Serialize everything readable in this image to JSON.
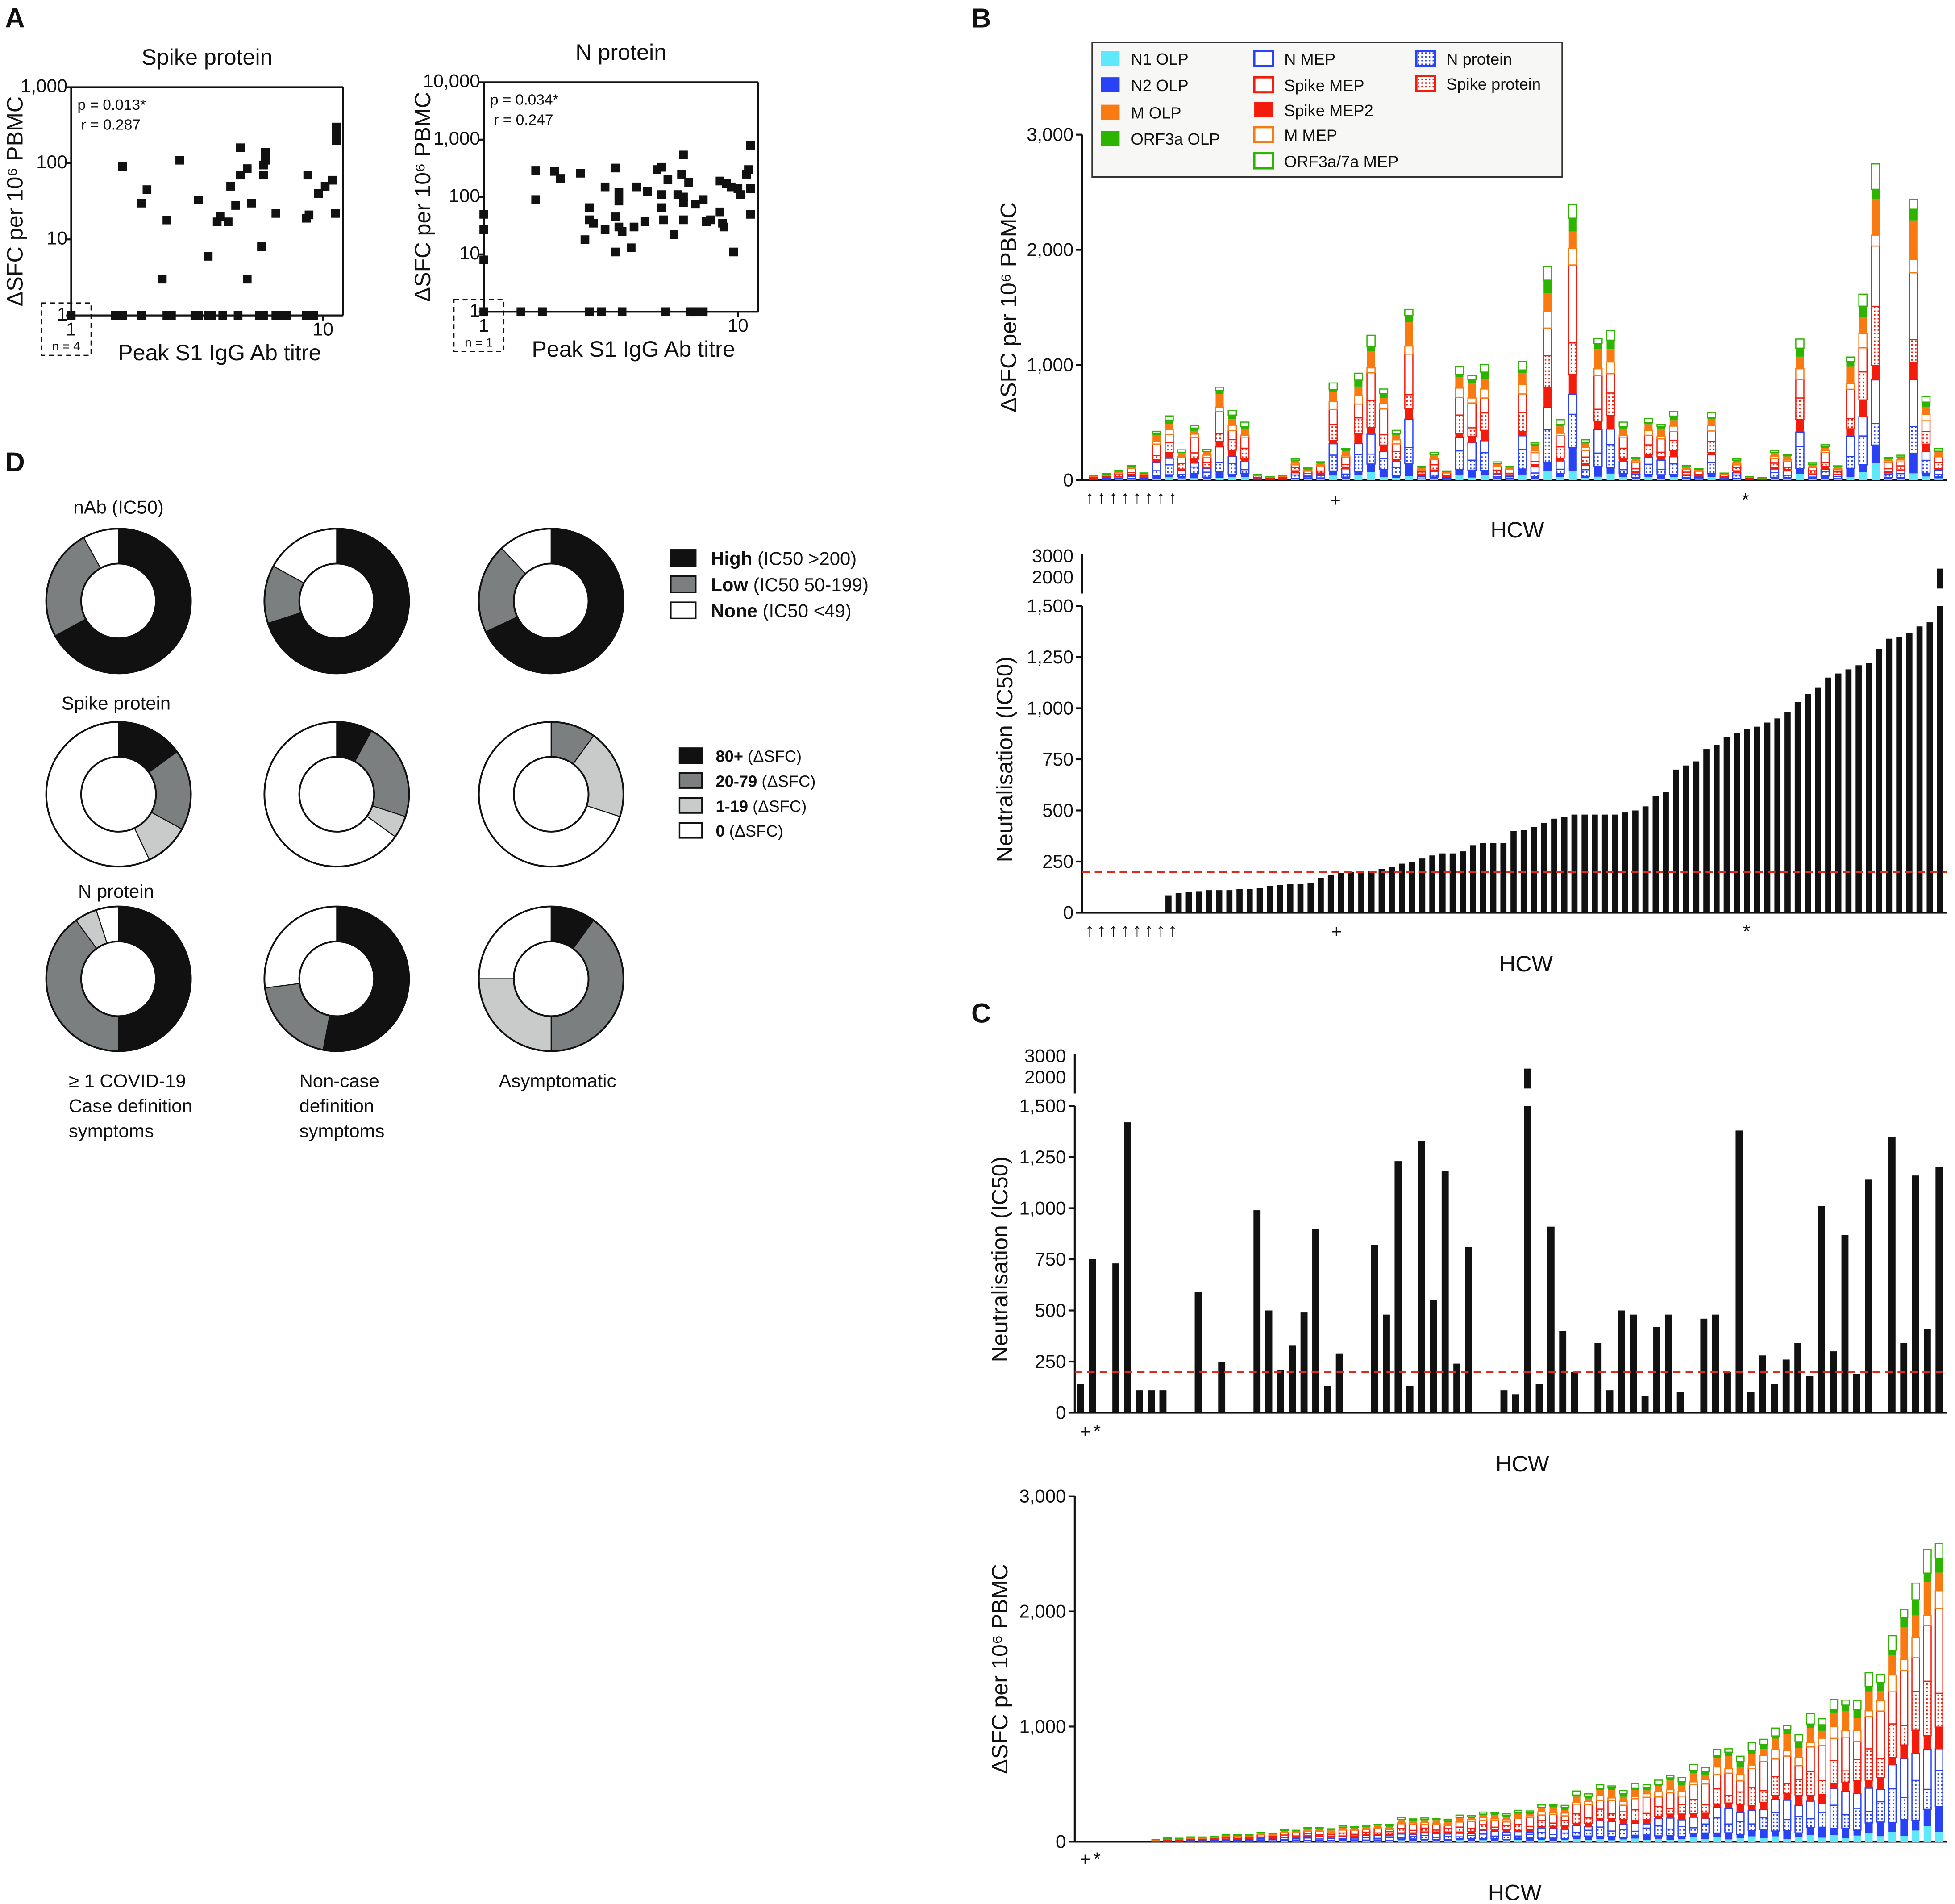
{
  "colors": {
    "n1_olp": "#5ee8fb",
    "n2_olp": "#2a42f5",
    "m_olp": "#fa7a12",
    "orf3a_olp": "#2db400",
    "n_mep": "#2a42f5",
    "spike_mep": "#f21b0c",
    "spike_mep2": "#f21b0c",
    "m_mep": "#fa7a12",
    "orf3a7a_mep": "#2db400",
    "n_protein": "#2a42f5",
    "spike_protein": "#f21b0c",
    "pie_high": "#111111",
    "pie_low": "#7b7f80",
    "pie_light": "#c8cbc9",
    "pie_none": "#ffffff",
    "threshold": "#e0281c"
  },
  "panels": {
    "a": "A",
    "b": "B",
    "c": "C",
    "d": "D"
  },
  "chart_data": [
    {
      "id": "A-spike",
      "type": "scatter",
      "title": "Spike protein",
      "xlabel": "Peak S1 IgG Ab titre",
      "ylabel": "ΔSFC per 10⁶ PBMC",
      "xscale": "log",
      "yscale": "log",
      "xlim": [
        1,
        12
      ],
      "ylim": [
        1,
        1000
      ],
      "yticks": [
        "1",
        "10",
        "100",
        "1,000"
      ],
      "xticks": [
        "1",
        "10"
      ],
      "annotation": [
        "p = 0.013*",
        "r = 0.287"
      ],
      "box_label": "n = 4",
      "points": [
        [
          1,
          1
        ],
        [
          1.5,
          1
        ],
        [
          1.6,
          1
        ],
        [
          1.9,
          1
        ],
        [
          2.4,
          1
        ],
        [
          2.5,
          1
        ],
        [
          3.1,
          1
        ],
        [
          3.2,
          1
        ],
        [
          3.5,
          1
        ],
        [
          3.6,
          1
        ],
        [
          4,
          1
        ],
        [
          4.6,
          1
        ],
        [
          5.6,
          1
        ],
        [
          5.8,
          1
        ],
        [
          6.5,
          1
        ],
        [
          6.7,
          1
        ],
        [
          7,
          1
        ],
        [
          7.2,
          1
        ],
        [
          8.6,
          1
        ],
        [
          8.8,
          1
        ],
        [
          9.2,
          1
        ],
        [
          1.6,
          90
        ],
        [
          1.9,
          30
        ],
        [
          2,
          45
        ],
        [
          2.3,
          3
        ],
        [
          2.4,
          18
        ],
        [
          2.7,
          110
        ],
        [
          3.2,
          33
        ],
        [
          3.5,
          6
        ],
        [
          3.8,
          17
        ],
        [
          3.9,
          20
        ],
        [
          4.2,
          17
        ],
        [
          4.3,
          50
        ],
        [
          4.5,
          28
        ],
        [
          4.7,
          160
        ],
        [
          4.7,
          70
        ],
        [
          5,
          85
        ],
        [
          5,
          3
        ],
        [
          5.2,
          30
        ],
        [
          5.7,
          8
        ],
        [
          5.8,
          95
        ],
        [
          5.8,
          70
        ],
        [
          5.9,
          140
        ],
        [
          5.9,
          110
        ],
        [
          6.5,
          22
        ],
        [
          8.6,
          19
        ],
        [
          8.8,
          21
        ],
        [
          8.7,
          70
        ],
        [
          9.6,
          40
        ],
        [
          10.2,
          50
        ],
        [
          10.9,
          60
        ],
        [
          11.2,
          22
        ],
        [
          11.3,
          200
        ],
        [
          11.3,
          300
        ],
        [
          11.3,
          250
        ]
      ]
    },
    {
      "id": "A-n",
      "type": "scatter",
      "title": "N protein",
      "xlabel": "Peak S1 IgG Ab titre",
      "ylabel": "ΔSFC per 10⁶ PBMC",
      "xscale": "log",
      "yscale": "log",
      "xlim": [
        1,
        12
      ],
      "ylim": [
        1,
        10000
      ],
      "yticks": [
        "1",
        "10",
        "100",
        "1,000",
        "10,000"
      ],
      "xticks": [
        "1",
        "10"
      ],
      "annotation": [
        "p = 0.034*",
        "r = 0.247"
      ],
      "box_label": "n = 1",
      "points": [
        [
          1,
          1
        ],
        [
          1.4,
          1
        ],
        [
          1.7,
          1
        ],
        [
          2.6,
          1
        ],
        [
          2.9,
          1
        ],
        [
          3.5,
          1
        ],
        [
          5.2,
          1
        ],
        [
          6.5,
          1
        ],
        [
          6.8,
          1
        ],
        [
          7.3,
          1
        ],
        [
          1,
          50
        ],
        [
          1,
          27
        ],
        [
          1,
          8
        ],
        [
          1.6,
          290
        ],
        [
          1.6,
          90
        ],
        [
          1.9,
          280
        ],
        [
          2,
          210
        ],
        [
          2.4,
          260
        ],
        [
          2.5,
          18
        ],
        [
          2.6,
          65
        ],
        [
          2.6,
          40
        ],
        [
          2.7,
          35
        ],
        [
          3,
          150
        ],
        [
          3,
          27
        ],
        [
          3.3,
          320
        ],
        [
          3.3,
          45
        ],
        [
          3.3,
          11
        ],
        [
          3.4,
          120
        ],
        [
          3.4,
          85
        ],
        [
          3.4,
          30
        ],
        [
          3.5,
          25
        ],
        [
          3.8,
          13
        ],
        [
          3.9,
          30
        ],
        [
          4,
          150
        ],
        [
          4.3,
          37
        ],
        [
          4.4,
          125
        ],
        [
          4.8,
          300
        ],
        [
          5,
          330
        ],
        [
          5,
          110
        ],
        [
          5,
          65
        ],
        [
          5.1,
          40
        ],
        [
          5.3,
          200
        ],
        [
          5.6,
          22
        ],
        [
          5.8,
          110
        ],
        [
          6,
          250
        ],
        [
          6.1,
          540
        ],
        [
          6.1,
          40
        ],
        [
          6.1,
          80
        ],
        [
          6.1,
          100
        ],
        [
          6.4,
          180
        ],
        [
          6.8,
          75
        ],
        [
          7.3,
          90
        ],
        [
          7.5,
          37
        ],
        [
          7.8,
          40
        ],
        [
          8.5,
          190
        ],
        [
          8.5,
          55
        ],
        [
          8.7,
          35
        ],
        [
          8.8,
          30
        ],
        [
          9,
          170
        ],
        [
          9.4,
          150
        ],
        [
          9.6,
          11
        ],
        [
          10,
          140
        ],
        [
          10.2,
          110
        ],
        [
          10.8,
          250
        ],
        [
          11,
          300
        ],
        [
          11.2,
          800
        ],
        [
          11.2,
          140
        ],
        [
          11.2,
          50
        ]
      ]
    },
    {
      "id": "B-tcell",
      "type": "bar",
      "stacked": true,
      "xlabel": "HCW",
      "ylabel": "ΔSFC per 10⁶ PBMC",
      "ylim": [
        0,
        3000
      ],
      "yticks": [
        "0",
        "1,000",
        "2,000",
        "3,000"
      ],
      "markers": {
        "plus": "+",
        "star": "*",
        "arrow": "↑"
      },
      "series": [
        "N1 OLP",
        "N2 OLP",
        "N protein",
        "N MEP",
        "Spike MEP2",
        "Spike protein",
        "Spike MEP",
        "M MEP",
        "M OLP",
        "ORF3a OLP",
        "ORF3a/7a MEP"
      ],
      "composition": [
        0.04,
        0.06,
        0.12,
        0.12,
        0.06,
        0.14,
        0.2,
        0.06,
        0.1,
        0.04,
        0.06
      ],
      "totals": [
        40,
        60,
        80,
        130,
        60,
        420,
        600,
        250,
        480,
        260,
        800,
        650,
        480,
        50,
        30,
        40,
        200,
        100,
        160,
        820,
        270,
        1000,
        1200,
        800,
        420,
        1470,
        130,
        230,
        80,
        960,
        900,
        1080,
        150,
        120,
        1000,
        320,
        2000,
        500,
        2420,
        340,
        1220,
        1400,
        480,
        200,
        520,
        480,
        640,
        120,
        100,
        570,
        60,
        200,
        30,
        20,
        250,
        220,
        1320,
        140,
        310,
        120,
        1060,
        1740,
        2620,
        200,
        210,
        2420,
        780,
        260
      ],
      "legend": [
        "N1 OLP",
        "N2 OLP",
        "M OLP",
        "ORF3a OLP",
        "N MEP",
        "Spike MEP",
        "Spike MEP2",
        "M MEP",
        "ORF3a/7a MEP",
        "N protein",
        "Spike protein"
      ]
    },
    {
      "id": "B-neut",
      "type": "bar",
      "xlabel": "HCW",
      "ylabel": "Neutralisation (IC50)",
      "ylim": [
        0,
        1500
      ],
      "break": [
        2000,
        3000
      ],
      "yticks": [
        "0",
        "250",
        "500",
        "750",
        "1,000",
        "1,250",
        "1,500",
        "2000",
        "3000"
      ],
      "threshold": 200,
      "values": [
        0,
        0,
        0,
        0,
        0,
        0,
        0,
        0,
        85,
        95,
        100,
        105,
        110,
        110,
        110,
        115,
        115,
        120,
        130,
        135,
        140,
        140,
        145,
        170,
        185,
        195,
        200,
        205,
        205,
        215,
        225,
        240,
        250,
        265,
        280,
        290,
        290,
        300,
        330,
        340,
        340,
        340,
        400,
        405,
        420,
        440,
        460,
        470,
        480,
        480,
        480,
        480,
        480,
        490,
        500,
        520,
        570,
        590,
        700,
        720,
        740,
        800,
        820,
        860,
        880,
        900,
        910,
        930,
        950,
        980,
        1030,
        1070,
        1100,
        1150,
        1170,
        1190,
        1210,
        1220,
        1290,
        1340,
        1350,
        1370,
        1400,
        1420,
        3000
      ]
    },
    {
      "id": "C-neut",
      "type": "bar",
      "xlabel": "HCW",
      "ylabel": "Neutralisation (IC50)",
      "ylim": [
        0,
        1500
      ],
      "break": [
        2000,
        3000
      ],
      "yticks": [
        "0",
        "250",
        "500",
        "750",
        "1,000",
        "1,250",
        "1,500",
        "2000",
        "3000"
      ],
      "threshold": 200,
      "values": [
        140,
        750,
        0,
        730,
        1420,
        110,
        110,
        110,
        0,
        0,
        590,
        0,
        250,
        0,
        0,
        990,
        500,
        210,
        330,
        490,
        900,
        130,
        290,
        0,
        0,
        820,
        480,
        1230,
        130,
        1330,
        550,
        1180,
        240,
        810,
        0,
        0,
        110,
        90,
        3000,
        140,
        910,
        400,
        200,
        0,
        340,
        110,
        500,
        480,
        80,
        420,
        480,
        100,
        0,
        460,
        480,
        200,
        1380,
        100,
        280,
        140,
        260,
        340,
        180,
        1010,
        300,
        870,
        190,
        1140,
        0,
        1350,
        340,
        1160,
        410,
        1200
      ]
    },
    {
      "id": "C-tcell",
      "type": "bar",
      "stacked": true,
      "sorted": "ascending",
      "xlabel": "HCW",
      "ylabel": "ΔSFC per 10⁶ PBMC",
      "ylim": [
        0,
        3000
      ],
      "yticks": [
        "0",
        "1,000",
        "2,000",
        "3,000"
      ],
      "uses_totals_of": "B-tcell"
    },
    {
      "id": "D-pies",
      "type": "pie",
      "donut": true,
      "row_titles": [
        "nAb (IC50)",
        "Spike protein",
        "N protein"
      ],
      "col_labels": [
        [
          "≥ 1 COVID-19",
          "Case definition",
          "symptoms"
        ],
        [
          "Non-case",
          "definition",
          "symptoms"
        ],
        [
          "Asymptomatic"
        ]
      ],
      "legend_nab": [
        [
          "High",
          "(IC50 >200)"
        ],
        [
          "Low",
          "(IC50 50-199)"
        ],
        [
          "None",
          "(IC50 <49)"
        ]
      ],
      "legend_sfc": [
        [
          "80+",
          "(ΔSFC)"
        ],
        [
          "20-79",
          "(ΔSFC)"
        ],
        [
          "1-19",
          "(ΔSFC)"
        ],
        [
          "0",
          "(ΔSFC)"
        ]
      ],
      "rows": [
        [
          [
            0.67,
            0.25,
            0,
            0.08
          ],
          [
            0.7,
            0.13,
            0,
            0.17
          ],
          [
            0.68,
            0.2,
            0,
            0.12
          ]
        ],
        [
          [
            0.15,
            0.18,
            0.1,
            0.57
          ],
          [
            0.08,
            0.22,
            0.05,
            0.65
          ],
          [
            0,
            0.1,
            0.2,
            0.7
          ]
        ],
        [
          [
            0.5,
            0.4,
            0.05,
            0.05
          ],
          [
            0.53,
            0.2,
            0,
            0.27
          ],
          [
            0.1,
            0.4,
            0.25,
            0.25
          ]
        ]
      ]
    }
  ]
}
